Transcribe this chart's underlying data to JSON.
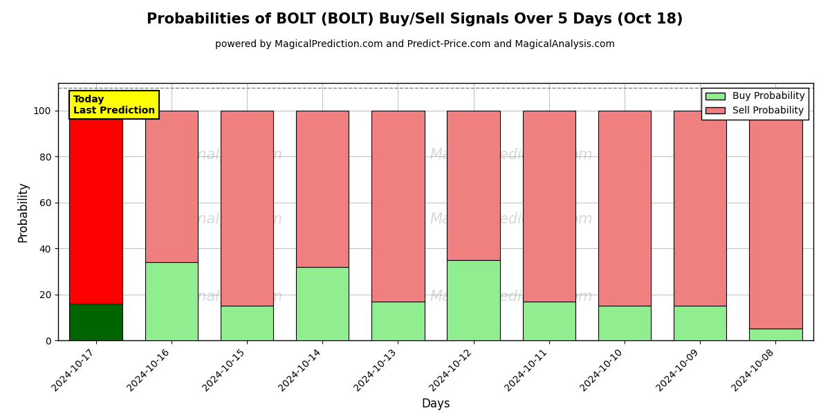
{
  "title": "Probabilities of BOLT (BOLT) Buy/Sell Signals Over 5 Days (Oct 18)",
  "subtitle": "powered by MagicalPrediction.com and Predict-Price.com and MagicalAnalysis.com",
  "xlabel": "Days",
  "ylabel": "Probability",
  "categories": [
    "2024-10-17",
    "2024-10-16",
    "2024-10-15",
    "2024-10-14",
    "2024-10-13",
    "2024-10-12",
    "2024-10-11",
    "2024-10-10",
    "2024-10-09",
    "2024-10-08"
  ],
  "buy_values": [
    16,
    34,
    15,
    32,
    17,
    35,
    17,
    15,
    15,
    5
  ],
  "sell_values": [
    84,
    66,
    85,
    68,
    83,
    65,
    83,
    85,
    85,
    95
  ],
  "today_buy_color": "#006400",
  "today_sell_color": "#FF0000",
  "normal_buy_color": "#90EE90",
  "normal_sell_color": "#F08080",
  "today_index": 0,
  "ylim": [
    0,
    112
  ],
  "dashed_line_y": 110,
  "today_label": "Today\nLast Prediction",
  "legend_buy": "Buy Probability",
  "legend_sell": "Sell Probability",
  "bar_edgecolor": "#000000",
  "bar_linewidth": 0.8,
  "bar_width": 0.7,
  "figsize": [
    12.0,
    6.0
  ],
  "dpi": 100
}
